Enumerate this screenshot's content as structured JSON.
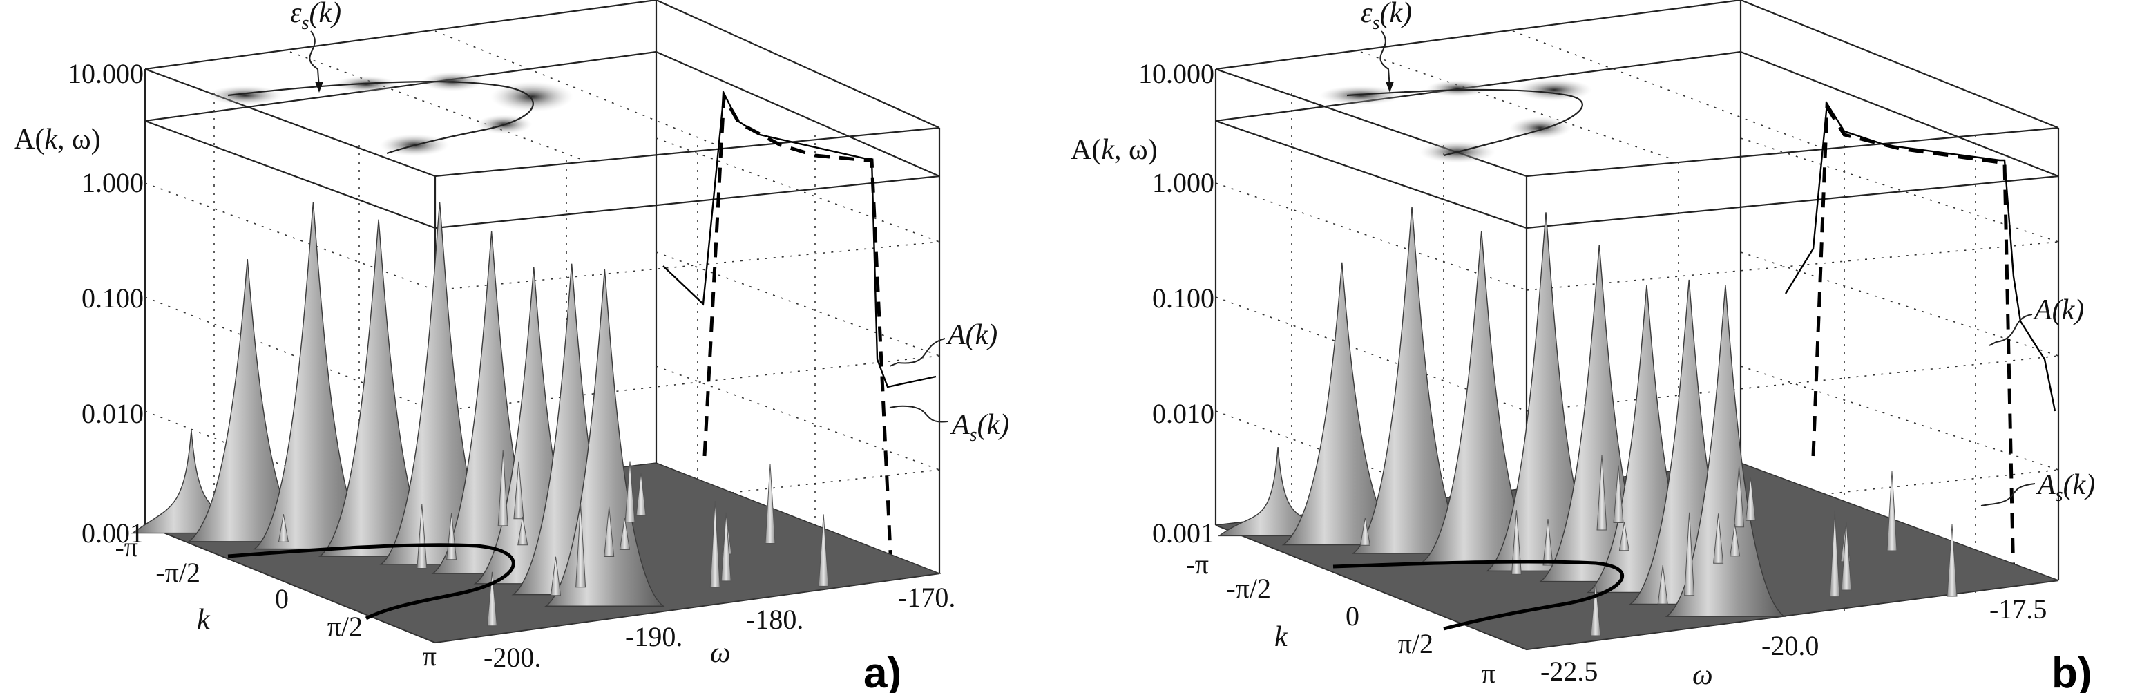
{
  "chart_data": [
    {
      "type": "surface",
      "panel_label": "a)",
      "zlabel_parts": [
        "A(",
        "k",
        ", ω)"
      ],
      "z_scale": "log",
      "zticks": [
        "0.001",
        "0.010",
        "0.100",
        "1.000",
        "10.000"
      ],
      "k_axis_label": "k",
      "kticks": [
        "-π",
        "-π/2",
        "0",
        "π/2",
        "π"
      ],
      "omega_axis_label": "ω",
      "omega_ticks": [
        "-200.",
        "-190.",
        "-180.",
        "-170."
      ],
      "omega_range": [
        -205,
        -170
      ],
      "top_projection_label": {
        "base": "ε",
        "sub": "s",
        "rest": "(k)"
      },
      "side_projection": {
        "series": [
          {
            "name": "A(k)",
            "style": "solid",
            "label": "A(k)"
          },
          {
            "name": "A_s(k)",
            "style": "dashed",
            "label_base": "A",
            "label_sub": "s",
            "label_rest": "(k)"
          }
        ]
      },
      "peaks": [
        {
          "k_rad": -3.14,
          "omega": -203.0,
          "A": 0.008
        },
        {
          "k_rad": -2.36,
          "omega": -200.0,
          "A": 0.3
        },
        {
          "k_rad": -1.57,
          "omega": -196.0,
          "A": 1.1
        },
        {
          "k_rad": -0.79,
          "omega": -192.0,
          "A": 0.9
        },
        {
          "k_rad": 0.0,
          "omega": -188.5,
          "A": 1.5
        },
        {
          "k_rad": 0.79,
          "omega": -186.0,
          "A": 1.0
        },
        {
          "k_rad": 1.57,
          "omega": -184.5,
          "A": 0.6
        },
        {
          "k_rad": 2.36,
          "omega": -183.5,
          "A": 0.8
        },
        {
          "k_rad": 3.14,
          "omega": -183.0,
          "A": 0.9
        }
      ]
    },
    {
      "type": "surface",
      "panel_label": "b)",
      "zlabel_parts": [
        "A(",
        "k",
        ", ω)"
      ],
      "z_scale": "log",
      "zticks": [
        "0.001",
        "0.010",
        "0.100",
        "1.000",
        "10.000"
      ],
      "k_axis_label": "k",
      "kticks": [
        "-π",
        "-π/2",
        "0",
        "π/2",
        "π"
      ],
      "omega_axis_label": "ω",
      "omega_ticks": [
        "-22.5",
        "-20.0",
        "-17.5"
      ],
      "omega_range": [
        -24,
        -17.5
      ],
      "top_projection_label": {
        "base": "ε",
        "sub": "s",
        "rest": "(k)"
      },
      "side_projection": {
        "series": [
          {
            "name": "A(k)",
            "style": "solid",
            "label": "A(k)"
          },
          {
            "name": "A_s(k)",
            "style": "dashed",
            "label_base": "A",
            "label_sub": "s",
            "label_rest": "(k)"
          }
        ]
      },
      "peaks": [
        {
          "k_rad": -3.14,
          "omega": -23.5,
          "A": 0.006
        },
        {
          "k_rad": -2.36,
          "omega": -22.9,
          "A": 0.3
        },
        {
          "k_rad": -1.57,
          "omega": -22.2,
          "A": 1.1
        },
        {
          "k_rad": -0.79,
          "omega": -21.5,
          "A": 0.8
        },
        {
          "k_rad": 0.0,
          "omega": -20.9,
          "A": 1.4
        },
        {
          "k_rad": 0.79,
          "omega": -20.5,
          "A": 0.9
        },
        {
          "k_rad": 1.57,
          "omega": -20.2,
          "A": 0.5
        },
        {
          "k_rad": 2.36,
          "omega": -20.0,
          "A": 0.7
        },
        {
          "k_rad": 3.14,
          "omega": -19.9,
          "A": 0.8
        }
      ]
    }
  ]
}
